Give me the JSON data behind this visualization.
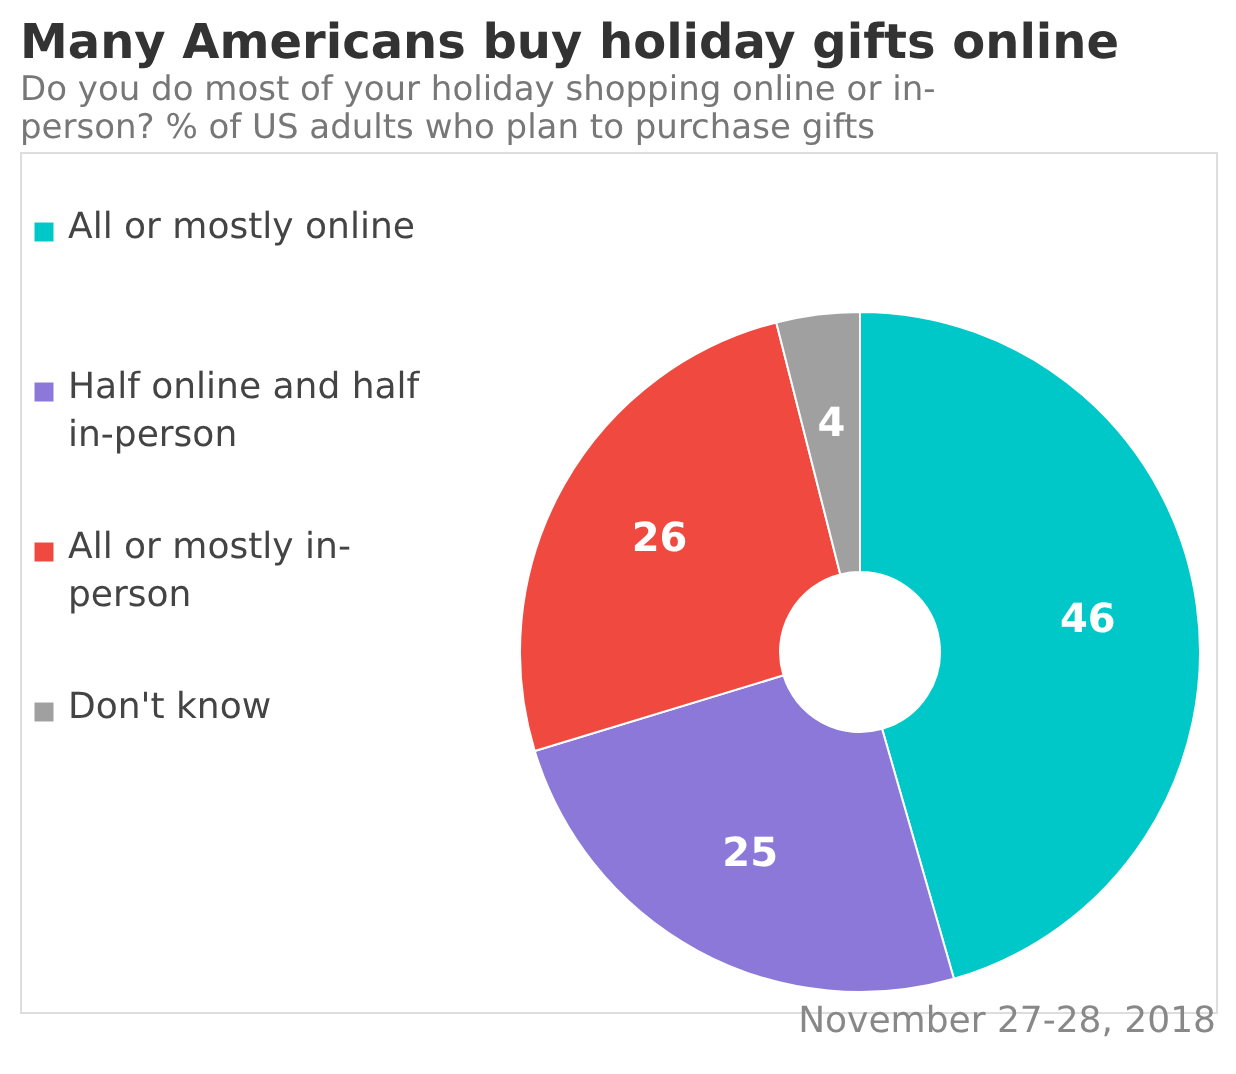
{
  "chart_data": {
    "type": "donut",
    "title": "Many Americans buy holiday gifts online",
    "subtitle": "Do you do most of your holiday shopping online or in-person? % of US adults who plan to purchase gifts",
    "categories": [
      "All or mostly online",
      "Half online and half in-person",
      "All or mostly in-person",
      "Don't know"
    ],
    "values": [
      46,
      25,
      26,
      4
    ],
    "colors": [
      "#00c8c8",
      "#8c78d8",
      "#f04a40",
      "#a0a0a0"
    ],
    "data_labels": true,
    "legend": "left",
    "annotations": [
      "November 27-28, 2018"
    ]
  }
}
